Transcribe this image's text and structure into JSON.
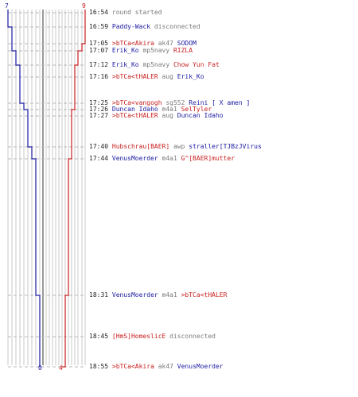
{
  "colors": {
    "blue": "#1a1aa0",
    "red": "#c81e1e",
    "gray": "#7a7a7a",
    "grid": "#c8c8c8",
    "divider": "#555555"
  },
  "scores": {
    "blue_start": "7",
    "red_start": "9",
    "blue_end": "0",
    "red_end": "4"
  },
  "events": [
    {
      "time": "16:54",
      "parts": [
        {
          "text": "round started",
          "color": "gray"
        }
      ]
    },
    {
      "time": "16:59",
      "parts": [
        {
          "text": "Paddy-Wack",
          "color": "blue"
        },
        {
          "text": " disconnected",
          "color": "gray"
        }
      ]
    },
    {
      "time": "17:05",
      "parts": [
        {
          "text": ">bTCa<Akira",
          "color": "red"
        },
        {
          "text": " ak47 ",
          "color": "gray"
        },
        {
          "text": "SODOM",
          "color": "blue"
        }
      ]
    },
    {
      "time": "17:07",
      "parts": [
        {
          "text": "Erik_Ko",
          "color": "blue"
        },
        {
          "text": " mp5navy ",
          "color": "gray"
        },
        {
          "text": "RIZLA",
          "color": "red"
        }
      ]
    },
    {
      "time": "17:12",
      "parts": [
        {
          "text": "Erik_Ko",
          "color": "blue"
        },
        {
          "text": " mp5navy ",
          "color": "gray"
        },
        {
          "text": "Chow Yun Fat",
          "color": "red"
        }
      ]
    },
    {
      "time": "17:16",
      "parts": [
        {
          "text": ">bTCa<tHALER",
          "color": "red"
        },
        {
          "text": " aug ",
          "color": "gray"
        },
        {
          "text": "Erik_Ko",
          "color": "blue"
        }
      ]
    },
    {
      "time": "17:25",
      "parts": [
        {
          "text": ">bTCa<vangogh",
          "color": "red"
        },
        {
          "text": " sg552 ",
          "color": "gray"
        },
        {
          "text": "Reini [ X amen ]",
          "color": "blue"
        }
      ]
    },
    {
      "time": "17:26",
      "parts": [
        {
          "text": "Duncan Idaho",
          "color": "blue"
        },
        {
          "text": " m4a1 ",
          "color": "gray"
        },
        {
          "text": "SelTyler",
          "color": "red"
        }
      ]
    },
    {
      "time": "17:27",
      "parts": [
        {
          "text": ">bTCa<tHALER",
          "color": "red"
        },
        {
          "text": " aug ",
          "color": "gray"
        },
        {
          "text": "Duncan Idaho",
          "color": "blue"
        }
      ]
    },
    {
      "time": "17:40",
      "parts": [
        {
          "text": "Hubschrau[BAER]",
          "color": "red"
        },
        {
          "text": " awp ",
          "color": "gray"
        },
        {
          "text": "straller[TJBzJVirus",
          "color": "blue"
        }
      ]
    },
    {
      "time": "17:44",
      "parts": [
        {
          "text": "VenusMoerder",
          "color": "blue"
        },
        {
          "text": " m4a1 ",
          "color": "gray"
        },
        {
          "text": "G^[BAER]mutter",
          "color": "red"
        }
      ]
    },
    {
      "time": "18:31",
      "parts": [
        {
          "text": "VenusMoerder",
          "color": "blue"
        },
        {
          "text": " m4a1 ",
          "color": "gray"
        },
        {
          "text": ">bTCa<tHALER",
          "color": "red"
        }
      ]
    },
    {
      "time": "18:45",
      "parts": [
        {
          "text": "[HmS]HomeslicE",
          "color": "red"
        },
        {
          "text": " disconnected",
          "color": "gray"
        }
      ]
    },
    {
      "time": "18:55",
      "parts": [
        {
          "text": ">bTCa<Akira",
          "color": "red"
        },
        {
          "text": " ak47 ",
          "color": "gray"
        },
        {
          "text": "VenusMoerder",
          "color": "blue"
        }
      ]
    }
  ]
}
